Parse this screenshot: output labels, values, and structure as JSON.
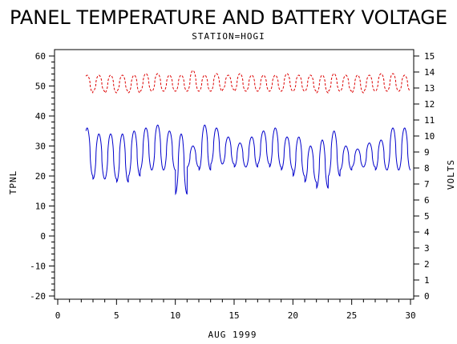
{
  "chart_data": {
    "type": "line",
    "title": "PANEL TEMPERATURE AND BATTERY VOLTAGE",
    "subtitle": "STATION=HOGI",
    "xlabel": "AUG 1999",
    "ylabel_left": "TPNL",
    "ylabel_right": "VOLTS",
    "xlim": [
      0,
      30
    ],
    "ylim_left": [
      -20,
      60
    ],
    "ylim_right": [
      0,
      15
    ],
    "x_ticks": [
      0,
      5,
      10,
      15,
      20,
      25,
      30
    ],
    "y_ticks_left": [
      -20,
      -10,
      0,
      10,
      20,
      30,
      40,
      50,
      60
    ],
    "y_ticks_right": [
      0,
      1,
      2,
      3,
      4,
      5,
      6,
      7,
      8,
      9,
      10,
      11,
      12,
      13,
      14,
      15
    ],
    "grid": false,
    "series": [
      {
        "axis": "left",
        "color": "#0000cc",
        "style": "solid",
        "days": [
          2.5,
          3.5,
          4.5,
          5.5,
          6.5,
          7.5,
          8.5,
          9.5,
          10.5,
          11.5,
          12.5,
          13.5,
          14.5,
          15.5,
          16.5,
          17.5,
          18.5,
          19.5,
          20.5,
          21.5,
          22.5,
          23.5,
          24.5,
          25.5,
          26.5,
          27.5,
          28.5,
          29.5
        ],
        "daily_max": [
          36,
          34,
          34,
          34,
          35,
          36,
          37,
          35,
          34,
          30,
          37,
          36,
          33,
          31,
          33,
          35,
          36,
          33,
          33,
          30,
          32,
          35,
          30,
          29,
          31,
          32,
          36,
          36
        ],
        "daily_min": [
          20,
          19,
          19,
          18,
          20,
          22,
          22,
          22,
          14,
          23,
          22,
          24,
          24,
          23,
          23,
          24,
          23,
          22,
          20,
          18,
          16,
          20,
          22,
          23,
          23,
          22,
          22,
          22
        ]
      },
      {
        "axis": "right",
        "color": "#dd0000",
        "style": "dashed",
        "days": [
          2.5,
          3.5,
          4.5,
          5.5,
          6.5,
          7.5,
          8.5,
          9.5,
          10.5,
          11.5,
          12.5,
          13.5,
          14.5,
          15.5,
          16.5,
          17.5,
          18.5,
          19.5,
          20.5,
          21.5,
          22.5,
          23.5,
          24.5,
          25.5,
          26.5,
          27.5,
          28.5,
          29.5
        ],
        "daily_max": [
          13.8,
          13.8,
          13.8,
          13.8,
          13.8,
          13.9,
          13.9,
          13.8,
          13.8,
          14.1,
          13.8,
          13.9,
          13.8,
          13.9,
          13.8,
          13.8,
          13.8,
          13.9,
          13.8,
          13.8,
          13.8,
          13.9,
          13.8,
          13.8,
          13.8,
          13.9,
          13.9,
          13.8
        ],
        "daily_min": [
          12.7,
          12.8,
          12.7,
          12.8,
          12.7,
          12.8,
          12.8,
          12.8,
          12.8,
          12.8,
          12.8,
          12.8,
          12.9,
          12.8,
          12.8,
          12.8,
          12.8,
          12.8,
          12.8,
          12.8,
          12.7,
          12.8,
          12.8,
          12.7,
          12.8,
          12.8,
          12.8,
          12.8
        ]
      }
    ]
  }
}
